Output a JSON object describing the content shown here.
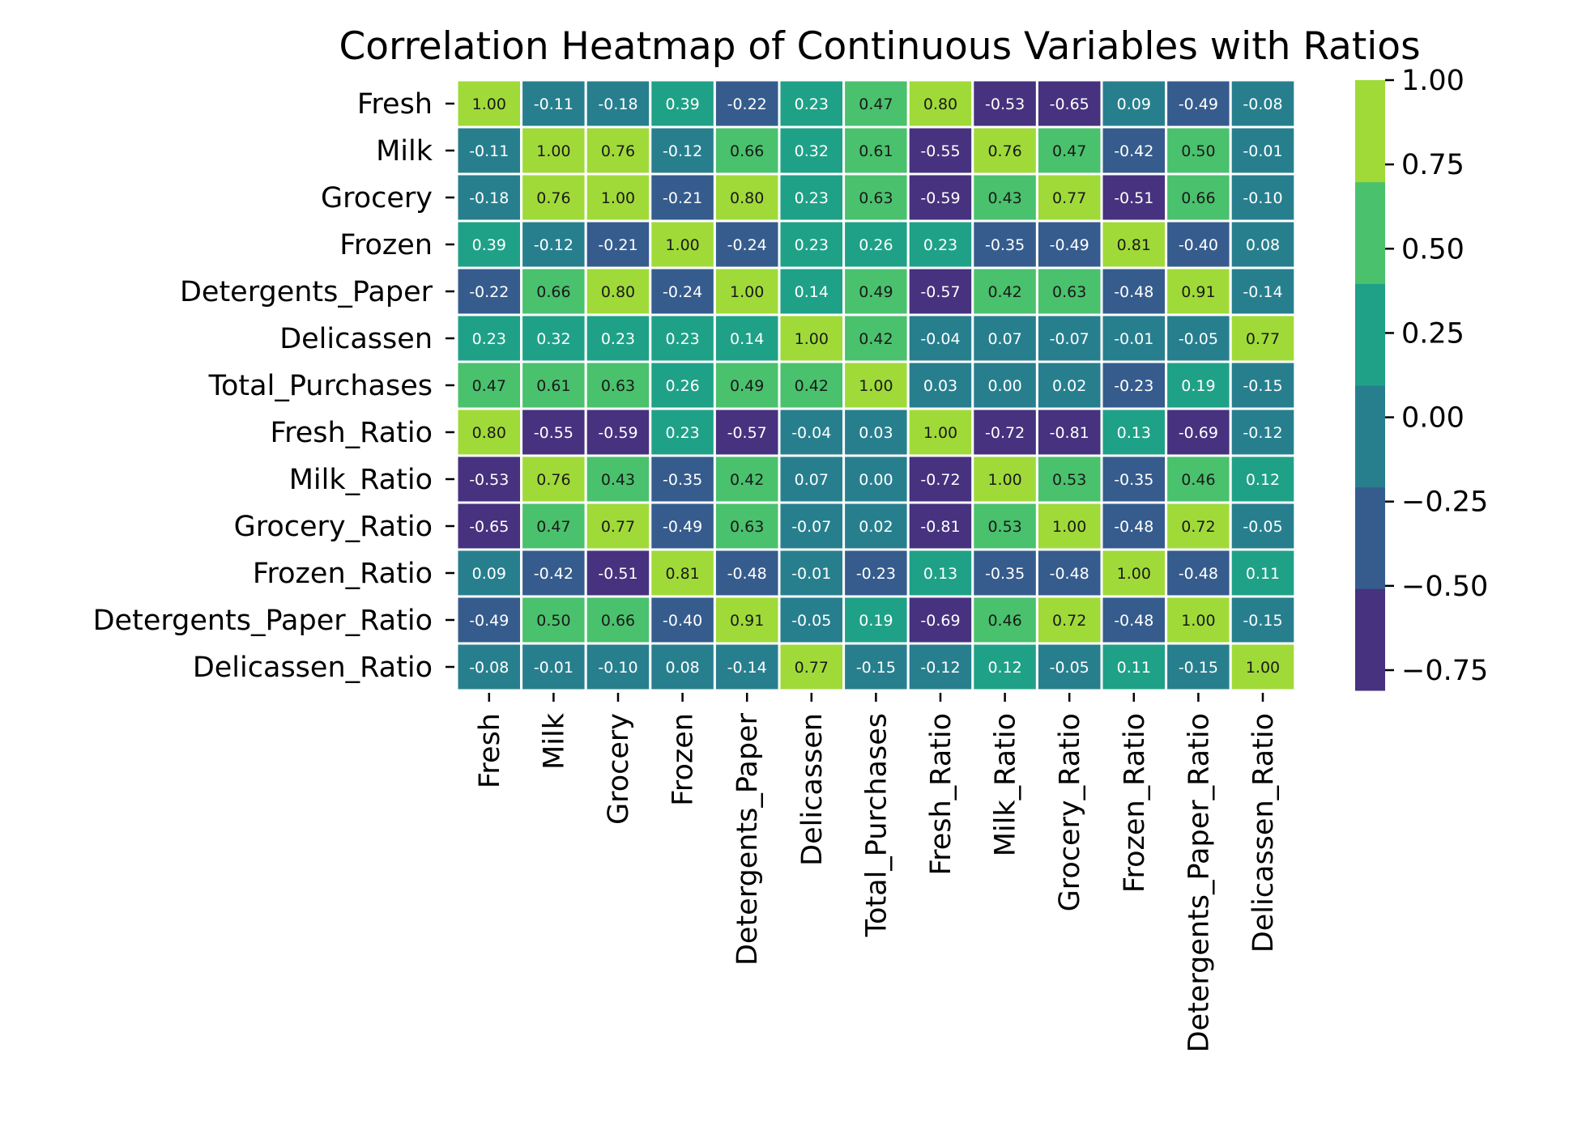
{
  "chart_data": {
    "type": "heatmap",
    "title": "Correlation Heatmap of Continuous Variables with Ratios",
    "row_labels": [
      "Fresh",
      "Milk",
      "Grocery",
      "Frozen",
      "Detergents_Paper",
      "Delicassen",
      "Total_Purchases",
      "Fresh_Ratio",
      "Milk_Ratio",
      "Grocery_Ratio",
      "Frozen_Ratio",
      "Detergents_Paper_Ratio",
      "Delicassen_Ratio"
    ],
    "col_labels": [
      "Fresh",
      "Milk",
      "Grocery",
      "Frozen",
      "Detergents_Paper",
      "Delicassen",
      "Total_Purchases",
      "Fresh_Ratio",
      "Milk_Ratio",
      "Grocery_Ratio",
      "Frozen_Ratio",
      "Detergents_Paper_Ratio",
      "Delicassen_Ratio"
    ],
    "values": [
      [
        1.0,
        -0.11,
        -0.18,
        0.39,
        -0.22,
        0.23,
        0.47,
        0.8,
        -0.53,
        -0.65,
        0.09,
        -0.49,
        -0.08
      ],
      [
        -0.11,
        1.0,
        0.76,
        -0.12,
        0.66,
        0.32,
        0.61,
        -0.55,
        0.76,
        0.47,
        -0.42,
        0.5,
        -0.01
      ],
      [
        -0.18,
        0.76,
        1.0,
        -0.21,
        0.8,
        0.23,
        0.63,
        -0.59,
        0.43,
        0.77,
        -0.51,
        0.66,
        -0.1
      ],
      [
        0.39,
        -0.12,
        -0.21,
        1.0,
        -0.24,
        0.23,
        0.26,
        0.23,
        -0.35,
        -0.49,
        0.81,
        -0.4,
        0.08
      ],
      [
        -0.22,
        0.66,
        0.8,
        -0.24,
        1.0,
        0.14,
        0.49,
        -0.57,
        0.42,
        0.63,
        -0.48,
        0.91,
        -0.14
      ],
      [
        0.23,
        0.32,
        0.23,
        0.23,
        0.14,
        1.0,
        0.42,
        -0.04,
        0.07,
        -0.07,
        -0.01,
        -0.05,
        0.77
      ],
      [
        0.47,
        0.61,
        0.63,
        0.26,
        0.49,
        0.42,
        1.0,
        0.03,
        -0.0,
        0.02,
        -0.23,
        0.19,
        -0.15
      ],
      [
        0.8,
        -0.55,
        -0.59,
        0.23,
        -0.57,
        -0.04,
        0.03,
        1.0,
        -0.72,
        -0.81,
        0.13,
        -0.69,
        -0.12
      ],
      [
        -0.53,
        0.76,
        0.43,
        -0.35,
        0.42,
        0.07,
        -0.0,
        -0.72,
        1.0,
        0.53,
        -0.35,
        0.46,
        0.12
      ],
      [
        -0.65,
        0.47,
        0.77,
        -0.49,
        0.63,
        -0.07,
        0.02,
        -0.81,
        0.53,
        1.0,
        -0.48,
        0.72,
        -0.05
      ],
      [
        0.09,
        -0.42,
        -0.51,
        0.81,
        -0.48,
        -0.01,
        -0.23,
        0.13,
        -0.35,
        -0.48,
        1.0,
        -0.48,
        0.11
      ],
      [
        -0.49,
        0.5,
        0.66,
        -0.4,
        0.91,
        -0.05,
        0.19,
        -0.69,
        0.46,
        0.72,
        -0.48,
        1.0,
        -0.15
      ],
      [
        -0.08,
        -0.01,
        -0.1,
        0.08,
        -0.14,
        0.77,
        -0.15,
        -0.12,
        0.12,
        -0.05,
        0.11,
        -0.15,
        1.0
      ]
    ],
    "value_format": "0.00",
    "colormap": "viridis (discrete, 6 bands)",
    "color_range": [
      -0.81,
      1.0
    ],
    "color_bands": [
      "#46327e",
      "#365c8d",
      "#277f8e",
      "#1fa187",
      "#4ac16d",
      "#a0da39"
    ],
    "colorbar_ticks": [
      "1.00",
      "0.75",
      "0.50",
      "0.25",
      "0.00",
      "−0.25",
      "−0.50",
      "−0.75"
    ],
    "colorbar_tick_values": [
      1.0,
      0.75,
      0.5,
      0.25,
      0.0,
      -0.25,
      -0.5,
      -0.75
    ],
    "grid_line_color": "#ffffff",
    "dark_text_color": "#1a1a1a",
    "light_text_color": "#ffffff"
  }
}
